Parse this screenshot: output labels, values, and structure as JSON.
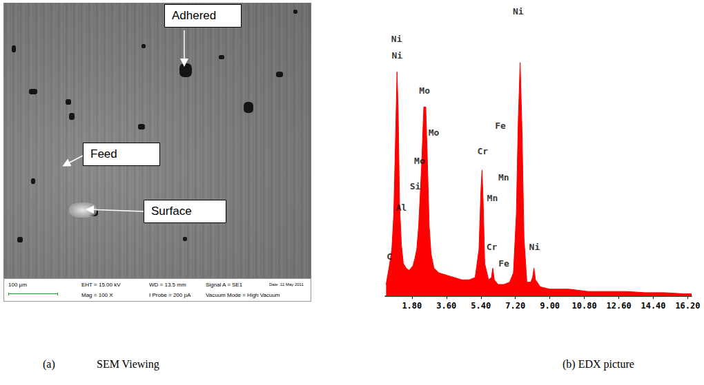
{
  "figure": {
    "sem": {
      "callouts": [
        "Adhered",
        "Feed",
        "Surface"
      ],
      "scale_bar": "100 µm",
      "info": [
        "EHT = 15.00 kV",
        "Mag = 100 X",
        "WD = 13.5 mm",
        "I Probe = 200 pA",
        "Signal A = SE1",
        "Vacuum Mode = High Vacuum",
        "Date :11 May 2011"
      ],
      "caption_letter": "(a)",
      "caption": "SEM Viewing"
    },
    "edx_caption": "(b) EDX picture"
  },
  "chart_data": {
    "type": "area",
    "color": "#ff0000",
    "x": [
      0.45,
      0.6,
      0.75,
      0.85,
      0.95,
      1.02,
      1.08,
      1.15,
      1.25,
      1.35,
      1.5,
      1.65,
      1.75,
      1.85,
      1.95,
      2.05,
      2.15,
      2.3,
      2.42,
      2.52,
      2.6,
      2.7,
      2.8,
      2.95,
      3.2,
      3.6,
      4.0,
      4.4,
      4.8,
      5.1,
      5.3,
      5.4,
      5.46,
      5.52,
      5.6,
      5.8,
      5.95,
      6.02,
      6.1,
      6.3,
      6.6,
      6.9,
      7.1,
      7.25,
      7.35,
      7.45,
      7.55,
      7.65,
      7.8,
      8.0,
      8.1,
      8.17,
      8.25,
      8.5,
      9.0,
      10.0,
      11.0,
      12.0,
      13.0,
      14.0,
      15.0,
      16.0,
      16.4
    ],
    "values": [
      5,
      12,
      20,
      35,
      70,
      96,
      80,
      40,
      22,
      14,
      12,
      11,
      12,
      13,
      16,
      20,
      30,
      55,
      81,
      81,
      60,
      30,
      18,
      12,
      10,
      9,
      8,
      7,
      7,
      8,
      20,
      45,
      54,
      40,
      14,
      7,
      8,
      12,
      7,
      5,
      5,
      6,
      10,
      35,
      75,
      100,
      70,
      25,
      6,
      6,
      8,
      12,
      7,
      4,
      3,
      3,
      2,
      2,
      2,
      1.5,
      1.5,
      1,
      1
    ],
    "xlim": [
      0.4,
      16.4
    ],
    "xticks": [
      {
        "value": 1.8,
        "label": "1.80"
      },
      {
        "value": 3.6,
        "label": "3.60"
      },
      {
        "value": 5.4,
        "label": "5.40"
      },
      {
        "value": 7.2,
        "label": "7.20"
      },
      {
        "value": 9.0,
        "label": "9.00"
      },
      {
        "value": 10.8,
        "label": "10.80"
      },
      {
        "value": 12.6,
        "label": "12.60"
      },
      {
        "value": 14.4,
        "label": "14.40"
      },
      {
        "value": 16.2,
        "label": "16.20"
      }
    ],
    "ylim": [
      0,
      125
    ],
    "tick_labels": "x",
    "grid": false,
    "annotations": [
      {
        "text": "Ni",
        "x": 1.0,
        "y": 110
      },
      {
        "text": "Ni",
        "x": 1.02,
        "y": 103
      },
      {
        "text": "Mo",
        "x": 2.46,
        "y": 88
      },
      {
        "text": "Mo",
        "x": 2.94,
        "y": 70
      },
      {
        "text": "Mo",
        "x": 2.2,
        "y": 58
      },
      {
        "text": "Si",
        "x": 1.97,
        "y": 47
      },
      {
        "text": "Al",
        "x": 1.25,
        "y": 38
      },
      {
        "text": "C",
        "x": 0.62,
        "y": 17
      },
      {
        "text": "Cr",
        "x": 5.49,
        "y": 62
      },
      {
        "text": "Cr",
        "x": 5.97,
        "y": 21
      },
      {
        "text": "Fe",
        "x": 6.42,
        "y": 73
      },
      {
        "text": "Mn",
        "x": 6.59,
        "y": 51
      },
      {
        "text": "Mn",
        "x": 6.0,
        "y": 42
      },
      {
        "text": "Fe",
        "x": 6.6,
        "y": 14
      },
      {
        "text": "Ni",
        "x": 7.35,
        "y": 122
      },
      {
        "text": "Ni",
        "x": 8.2,
        "y": 21
      }
    ]
  }
}
